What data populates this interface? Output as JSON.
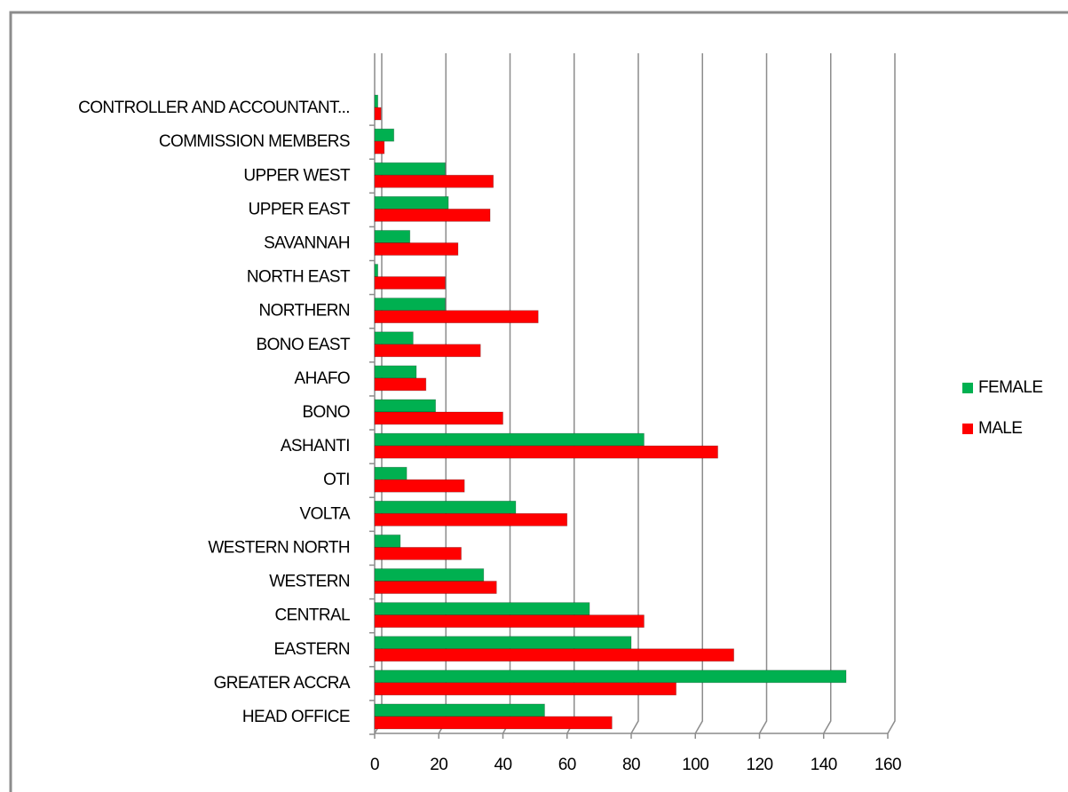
{
  "chart_data": {
    "type": "hbar",
    "categories": [
      "HEAD OFFICE",
      "GREATER ACCRA",
      "EASTERN",
      "CENTRAL",
      "WESTERN",
      "WESTERN NORTH",
      "VOLTA",
      "OTI",
      "ASHANTI",
      "BONO",
      "AHAFO",
      "BONO EAST",
      "NORTHERN",
      "NORTH EAST",
      "SAVANNAH",
      "UPPER EAST",
      "UPPER WEST",
      "COMMISSION MEMBERS",
      "CONTROLLER AND ACCOUNTANT..."
    ],
    "series": [
      {
        "name": "FEMALE",
        "color": "#00b050",
        "values": [
          53,
          147,
          80,
          67,
          34,
          8,
          44,
          10,
          84,
          19,
          13,
          12,
          22,
          1,
          11,
          23,
          22,
          6,
          1
        ]
      },
      {
        "name": "MALE",
        "color": "#ff0000",
        "values": [
          74,
          94,
          112,
          84,
          38,
          27,
          60,
          28,
          107,
          40,
          16,
          33,
          51,
          22,
          26,
          36,
          37,
          3,
          2
        ]
      }
    ],
    "xlim": [
      0,
      160
    ],
    "xticks": [
      0,
      20,
      40,
      60,
      80,
      100,
      120,
      140,
      160
    ],
    "grid": true,
    "legend": "right"
  }
}
